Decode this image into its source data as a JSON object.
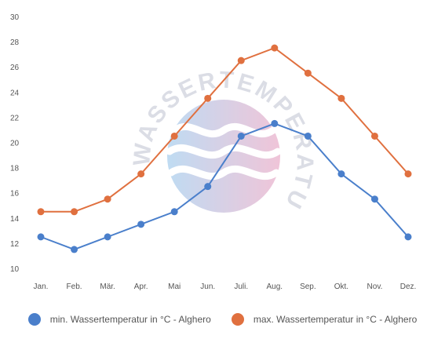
{
  "chart_data": {
    "type": "line",
    "categories": [
      "Jan.",
      "Feb.",
      "Mär.",
      "Apr.",
      "Mai",
      "Jun.",
      "Juli.",
      "Aug.",
      "Sep.",
      "Okt.",
      "Nov.",
      "Dez."
    ],
    "ylim": [
      10,
      30
    ],
    "yticks": [
      10,
      12,
      14,
      16,
      18,
      20,
      22,
      24,
      26,
      28,
      30
    ],
    "grid": false,
    "legend_position": "bottom",
    "watermark": "WASSERTEMPERATUR.ORG",
    "series": [
      {
        "name": "min. Wassertemperatur in °C - Alghero",
        "color": "#4a7fcb",
        "values": [
          12.5,
          11.5,
          12.5,
          13.5,
          14.5,
          16.5,
          20.5,
          21.5,
          20.5,
          17.5,
          15.5,
          12.5
        ]
      },
      {
        "name": "max. Wassertemperatur in °C - Alghero",
        "color": "#e0703f",
        "values": [
          14.5,
          14.5,
          15.5,
          17.5,
          20.5,
          23.5,
          26.5,
          27.5,
          25.5,
          23.5,
          20.5,
          17.5
        ]
      }
    ]
  }
}
